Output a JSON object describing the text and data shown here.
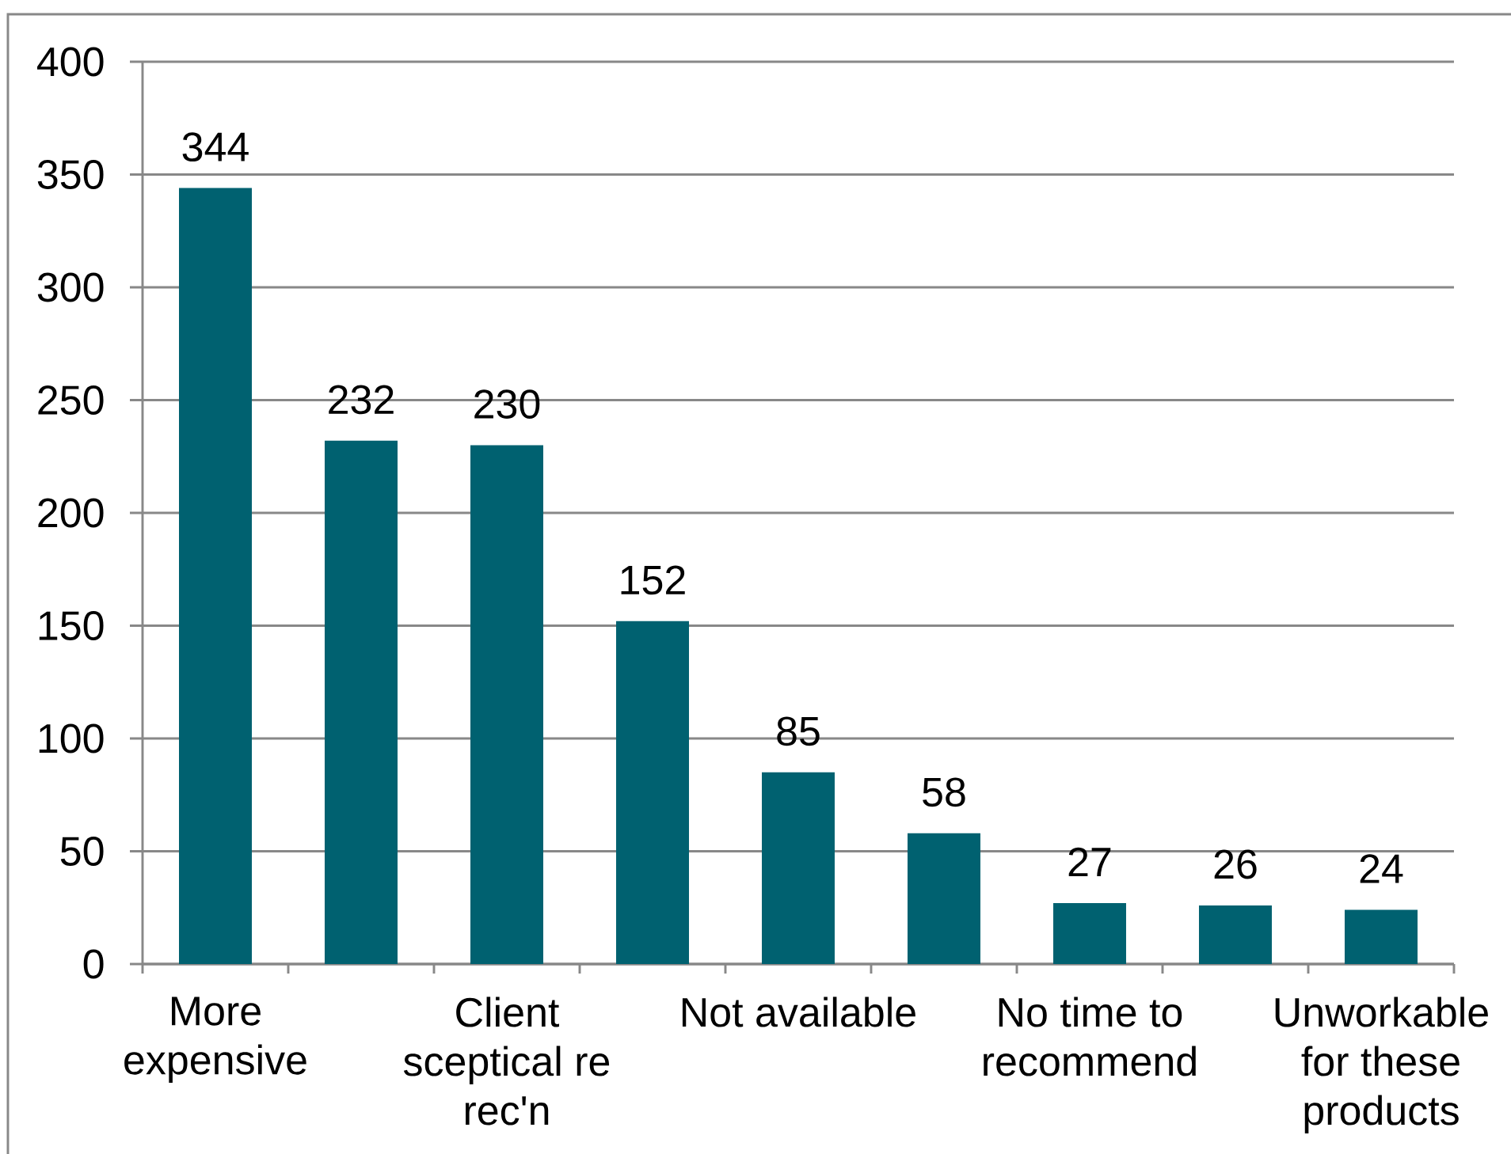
{
  "chart_data": {
    "type": "bar",
    "categories": [
      "More expensive",
      null,
      "Client sceptical re rec'n",
      null,
      "Not available",
      null,
      "No time to recommend",
      null,
      "Unworkable for these products"
    ],
    "values": [
      344,
      232,
      230,
      152,
      85,
      58,
      27,
      26,
      24
    ],
    "color": "#006170",
    "ylim": [
      0,
      400
    ],
    "yticks": [
      0,
      50,
      100,
      150,
      200,
      250,
      300,
      350,
      400
    ],
    "grid": "y",
    "data_labels": true
  }
}
